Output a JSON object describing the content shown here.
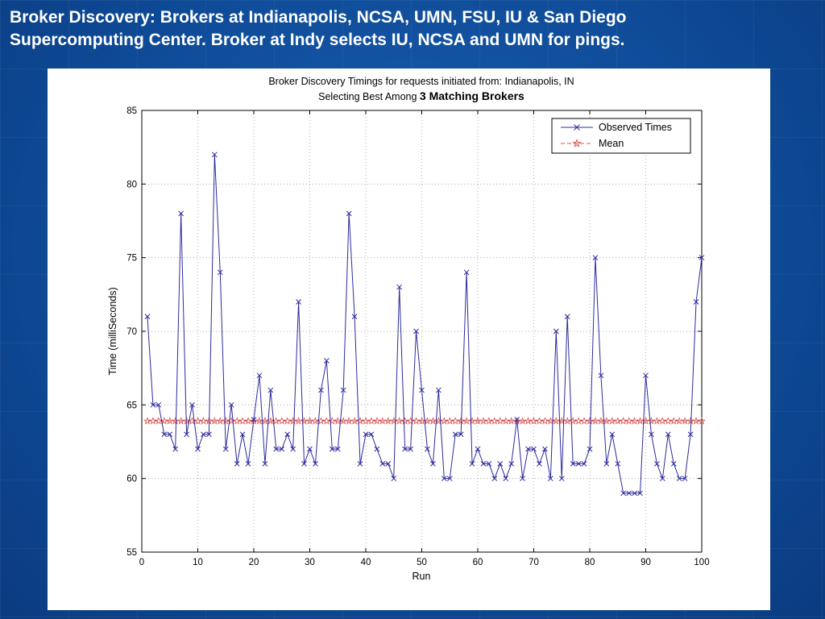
{
  "slide": {
    "title_line1": "Broker Discovery: Brokers at Indianapolis, NCSA, UMN, FSU, IU & San Diego",
    "title_line2": "Supercomputing Center. Broker at Indy selects IU, NCSA and UMN for pings."
  },
  "chart_data": {
    "type": "line",
    "title_line1": "Broker Discovery Timings for requests initiated from: Indianapolis, IN",
    "title_line2_prefix": "Selecting Best Among ",
    "title_line2_strong": "3 Matching Brokers",
    "xlabel": "Run",
    "ylabel": "Time (milliSeconds)",
    "xlim": [
      0,
      100
    ],
    "ylim": [
      55,
      85
    ],
    "xticks": [
      0,
      10,
      20,
      30,
      40,
      50,
      60,
      70,
      80,
      90,
      100
    ],
    "yticks": [
      55,
      60,
      65,
      70,
      75,
      80,
      85
    ],
    "grid": true,
    "legend_position": "top-right",
    "series": [
      {
        "name": "Observed Times",
        "color": "#2b2b9e",
        "marker": "x",
        "x": [
          1,
          2,
          3,
          4,
          5,
          6,
          7,
          8,
          9,
          10,
          11,
          12,
          13,
          14,
          15,
          16,
          17,
          18,
          19,
          20,
          21,
          22,
          23,
          24,
          25,
          26,
          27,
          28,
          29,
          30,
          31,
          32,
          33,
          34,
          35,
          36,
          37,
          38,
          39,
          40,
          41,
          42,
          43,
          44,
          45,
          46,
          47,
          48,
          49,
          50,
          51,
          52,
          53,
          54,
          55,
          56,
          57,
          58,
          59,
          60,
          61,
          62,
          63,
          64,
          65,
          66,
          67,
          68,
          69,
          70,
          71,
          72,
          73,
          74,
          75,
          76,
          77,
          78,
          79,
          80,
          81,
          82,
          83,
          84,
          85,
          86,
          87,
          88,
          89,
          90,
          91,
          92,
          93,
          94,
          95,
          96,
          97,
          98,
          99,
          100
        ],
        "values": [
          71,
          65,
          65,
          63,
          63,
          62,
          78,
          63,
          65,
          62,
          63,
          63,
          82,
          74,
          62,
          65,
          61,
          63,
          61,
          64,
          67,
          61,
          66,
          62,
          62,
          63,
          62,
          72,
          61,
          62,
          61,
          66,
          68,
          62,
          62,
          66,
          78,
          71,
          61,
          63,
          63,
          62,
          61,
          61,
          60,
          73,
          62,
          62,
          70,
          66,
          62,
          61,
          66,
          60,
          60,
          63,
          63,
          74,
          61,
          62,
          61,
          61,
          60,
          61,
          60,
          61,
          64,
          60,
          62,
          62,
          61,
          62,
          60,
          70,
          60,
          71,
          61,
          61,
          61,
          62,
          75,
          67,
          61,
          63,
          61,
          59,
          59,
          59,
          59,
          67,
          63,
          61,
          60,
          63,
          61,
          60,
          60,
          63,
          72,
          75
        ]
      },
      {
        "name": "Mean",
        "color": "#d9534f",
        "marker": "star",
        "linestyle": "dashed",
        "value": 63.9
      }
    ]
  }
}
